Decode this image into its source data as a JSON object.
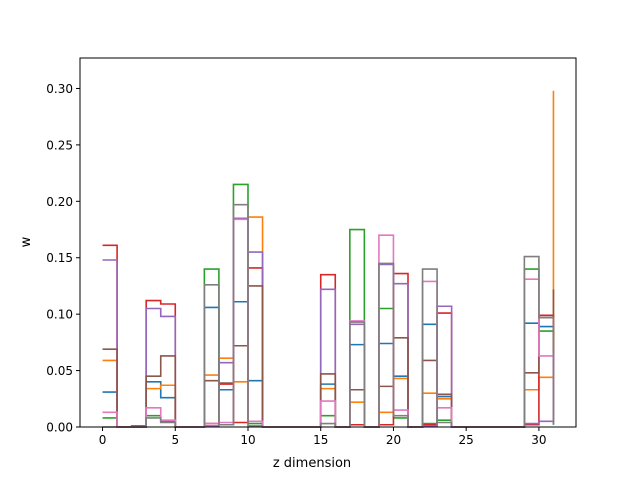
{
  "chart_data": {
    "type": "line",
    "step": "post",
    "xlabel": "z dimension",
    "ylabel": "w",
    "xlim": [
      -1.55,
      32.55
    ],
    "ylim": [
      0,
      0.327
    ],
    "xticks": [
      0,
      5,
      10,
      15,
      20,
      25,
      30
    ],
    "yticks": [
      0.0,
      0.05,
      0.1,
      0.15,
      0.2,
      0.25,
      0.3
    ],
    "xtick_labels": [
      "0",
      "5",
      "10",
      "15",
      "20",
      "25",
      "30"
    ],
    "ytick_labels": [
      "0.00",
      "0.05",
      "0.10",
      "0.15",
      "0.20",
      "0.25",
      "0.30"
    ],
    "grid": false,
    "x": [
      0,
      1,
      2,
      3,
      4,
      5,
      6,
      7,
      8,
      9,
      10,
      11,
      12,
      13,
      14,
      15,
      16,
      17,
      18,
      19,
      20,
      21,
      22,
      23,
      24,
      25,
      26,
      27,
      28,
      29,
      30,
      31
    ],
    "series": [
      {
        "color": "#1f77b4",
        "values": [
          0.031,
          0,
          0.001,
          0.04,
          0.026,
          0,
          0,
          0.106,
          0.033,
          0.111,
          0.041,
          0,
          0,
          0,
          0,
          0.038,
          0,
          0.073,
          0,
          0.074,
          0.045,
          0,
          0.091,
          0.027,
          0,
          0,
          0,
          0,
          0,
          0.092,
          0.089,
          0.081
        ]
      },
      {
        "color": "#ff7f0e",
        "values": [
          0.059,
          0,
          0,
          0.034,
          0.037,
          0,
          0,
          0.046,
          0.061,
          0.04,
          0.186,
          0,
          0,
          0,
          0,
          0.034,
          0,
          0.022,
          0,
          0.013,
          0.043,
          0,
          0.03,
          0.025,
          0,
          0,
          0,
          0,
          0,
          0.033,
          0.044,
          0.298
        ]
      },
      {
        "color": "#2ca02c",
        "values": [
          0.008,
          0,
          0,
          0.01,
          0.005,
          0,
          0,
          0.14,
          0.002,
          0.215,
          0.003,
          0,
          0,
          0,
          0,
          0.01,
          0,
          0.175,
          0,
          0.105,
          0.008,
          0,
          0.003,
          0.006,
          0,
          0,
          0,
          0,
          0,
          0.14,
          0.085,
          0.002
        ]
      },
      {
        "color": "#d62728",
        "values": [
          0.161,
          0,
          0,
          0.112,
          0.109,
          0,
          0,
          0.003,
          0.038,
          0.004,
          0.141,
          0,
          0,
          0,
          0,
          0.135,
          0,
          0.002,
          0,
          0.002,
          0.136,
          0,
          0.002,
          0.101,
          0,
          0,
          0,
          0,
          0,
          0.002,
          0.099,
          0.055
        ]
      },
      {
        "color": "#9467bd",
        "values": [
          0.148,
          0,
          0,
          0.105,
          0.098,
          0,
          0,
          0.001,
          0.057,
          0.185,
          0.155,
          0,
          0,
          0,
          0,
          0.122,
          0,
          0.091,
          0,
          0.144,
          0.127,
          0,
          0.001,
          0.107,
          0,
          0,
          0,
          0,
          0,
          0.003,
          0.005,
          0.069
        ]
      },
      {
        "color": "#8c564b",
        "values": [
          0.069,
          0,
          0,
          0.045,
          0.063,
          0,
          0,
          0.041,
          0.039,
          0.072,
          0.125,
          0,
          0,
          0,
          0,
          0.047,
          0,
          0.033,
          0,
          0.036,
          0.079,
          0,
          0.059,
          0.029,
          0,
          0,
          0,
          0,
          0,
          0.048,
          0.097,
          0.122
        ]
      },
      {
        "color": "#e377c2",
        "values": [
          0.013,
          0,
          0,
          0.017,
          0.006,
          0,
          0,
          0.003,
          0.004,
          0.184,
          0.005,
          0,
          0,
          0,
          0,
          0.023,
          0,
          0.094,
          0,
          0.17,
          0.015,
          0,
          0.129,
          0.017,
          0,
          0,
          0,
          0,
          0,
          0.131,
          0.063,
          0.005
        ]
      },
      {
        "color": "#7f7f7f",
        "values": [
          0.0,
          0,
          0,
          0.008,
          0.004,
          0,
          0,
          0.126,
          0.002,
          0.197,
          0.001,
          0,
          0,
          0,
          0,
          0.003,
          0,
          0.093,
          0,
          0.145,
          0.01,
          0,
          0.14,
          0.004,
          0,
          0,
          0,
          0,
          0,
          0.151,
          0.097,
          0.002
        ]
      }
    ]
  }
}
